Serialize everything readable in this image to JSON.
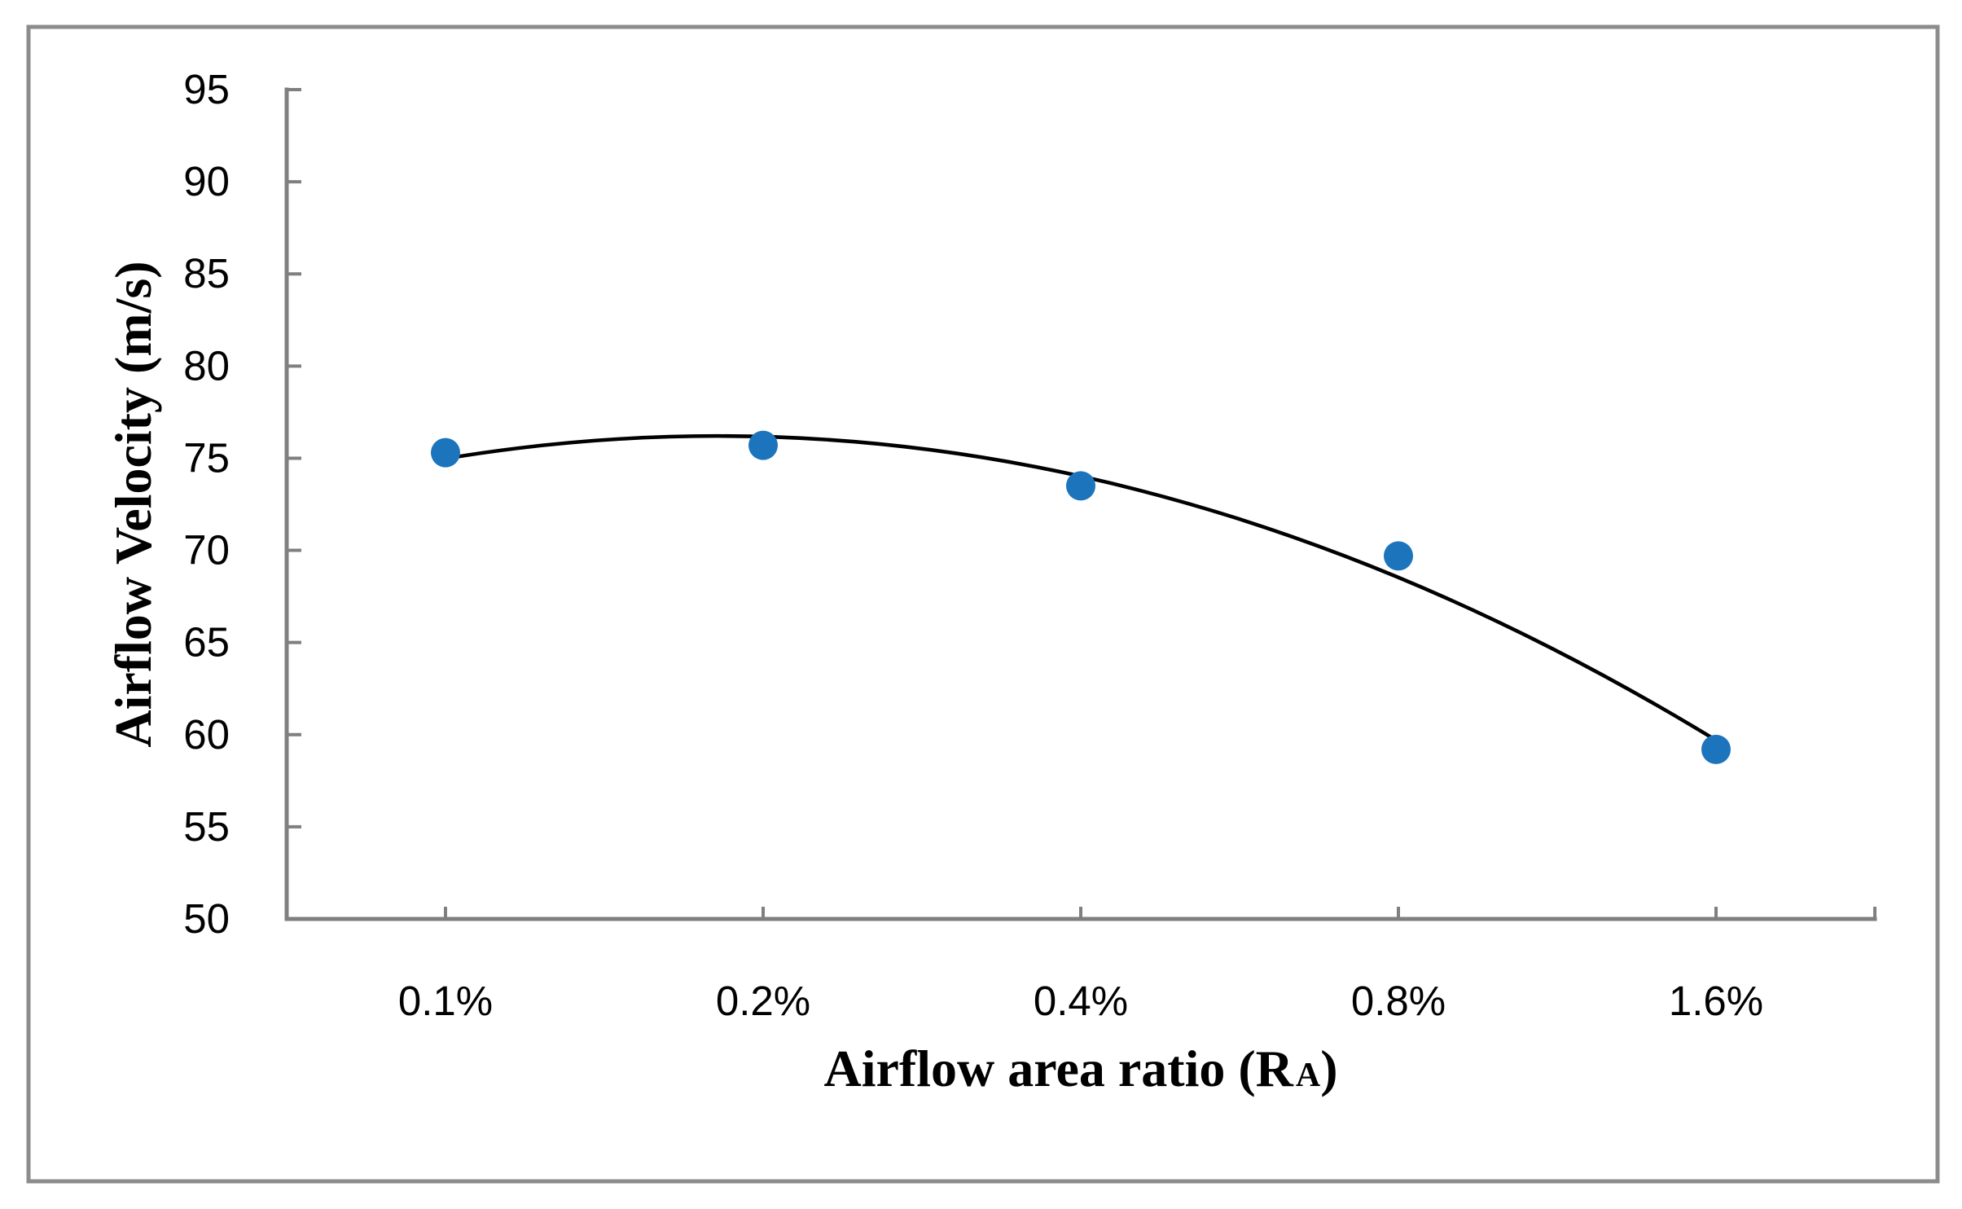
{
  "chart_data": {
    "type": "scatter",
    "title": "",
    "xlabel": {
      "prefix": "Airflow area ratio (R",
      "subscript": "A",
      "suffix": ")"
    },
    "ylabel": "Airflow Velocity (m/s)",
    "categories": [
      "0.1%",
      "0.2%",
      "0.4%",
      "0.8%",
      "1.6%"
    ],
    "series": [
      {
        "marker": "circle",
        "color": "#1c75bc",
        "values": [
          75.3,
          75.7,
          73.5,
          69.7,
          59.2
        ]
      }
    ],
    "trendline": {
      "type": "polynomial",
      "order": 2,
      "color": "#000000"
    },
    "ylim": [
      50,
      95
    ],
    "ytick_step": 5,
    "ytick_labels": [
      "95",
      "90",
      "85",
      "80",
      "75",
      "70",
      "65",
      "60",
      "55",
      "50"
    ],
    "grid": false,
    "legend": false,
    "axis_color": "#7f7f7f",
    "frame_color": "#8c8c8c",
    "text_color": "#000000",
    "background": "#ffffff"
  }
}
